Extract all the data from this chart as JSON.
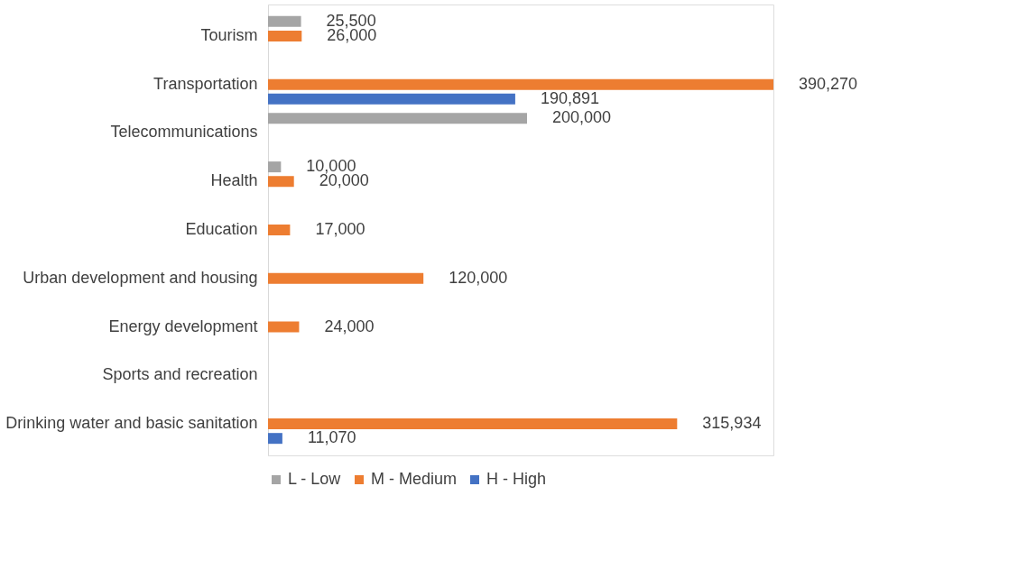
{
  "chart_data": {
    "type": "bar",
    "orientation": "horizontal",
    "legend": "bottom",
    "grid": false,
    "categories": [
      "Tourism",
      "Transportation",
      "Telecommunications",
      "Health",
      "Education",
      "Urban development and housing",
      "Energy development",
      "Sports and recreation",
      "Drinking water and basic sanitation"
    ],
    "series": [
      {
        "name": "L - Low",
        "color": "#a5a5a5",
        "values": [
          25500,
          null,
          200000,
          10000,
          null,
          null,
          null,
          null,
          null
        ],
        "value_labels": [
          "25,500",
          null,
          "200,000",
          "10,000",
          null,
          null,
          null,
          null,
          null
        ]
      },
      {
        "name": "M - Medium",
        "color": "#ed7d31",
        "values": [
          26000,
          390270,
          null,
          20000,
          17000,
          120000,
          24000,
          null,
          315934
        ],
        "value_labels": [
          "26,000",
          "390,270",
          null,
          "20,000",
          "17,000",
          "120,000",
          "24,000",
          null,
          "315,934"
        ]
      },
      {
        "name": "H - High",
        "color": "#4472c4",
        "values": [
          null,
          190891,
          null,
          null,
          null,
          null,
          null,
          null,
          11070
        ],
        "value_labels": [
          null,
          "190,891",
          null,
          null,
          null,
          null,
          null,
          null,
          "11,070"
        ]
      }
    ]
  }
}
